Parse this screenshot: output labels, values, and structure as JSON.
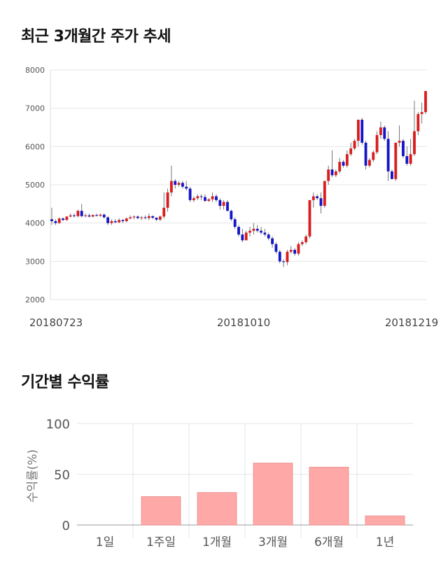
{
  "titles": {
    "price_trend": "최근 3개월간 주가 추세",
    "period_returns": "기간별 수익률"
  },
  "chart_data": [
    {
      "type": "candlestick",
      "ylim": [
        2000,
        8000
      ],
      "yticks": [
        "2000",
        "3000",
        "4000",
        "5000",
        "6000",
        "7000",
        "8000"
      ],
      "x_labels": [
        "20180723",
        "20181010",
        "20181219"
      ],
      "grid": true,
      "colors": {
        "up": "#d81e1e",
        "down": "#1515c8",
        "wick": "#555555",
        "grid": "#e6e6e6"
      },
      "candles": [
        [
          4100,
          4400,
          3950,
          4050
        ],
        [
          4050,
          4100,
          3950,
          4000
        ],
        [
          4000,
          4150,
          3980,
          4120
        ],
        [
          4120,
          4150,
          4050,
          4080
        ],
        [
          4080,
          4180,
          4060,
          4170
        ],
        [
          4170,
          4250,
          4150,
          4200
        ],
        [
          4200,
          4250,
          4150,
          4180
        ],
        [
          4180,
          4350,
          4150,
          4320
        ],
        [
          4320,
          4500,
          4150,
          4180
        ],
        [
          4180,
          4250,
          4150,
          4200
        ],
        [
          4200,
          4250,
          4150,
          4170
        ],
        [
          4170,
          4230,
          4150,
          4210
        ],
        [
          4210,
          4250,
          4170,
          4190
        ],
        [
          4190,
          4250,
          4160,
          4220
        ],
        [
          4220,
          4250,
          4120,
          4150
        ],
        [
          4150,
          4180,
          3950,
          4000
        ],
        [
          4000,
          4100,
          3950,
          4050
        ],
        [
          4050,
          4100,
          4000,
          4020
        ],
        [
          4020,
          4120,
          4000,
          4080
        ],
        [
          4080,
          4100,
          4000,
          4050
        ],
        [
          4050,
          4150,
          4020,
          4120
        ],
        [
          4120,
          4200,
          4100,
          4150
        ],
        [
          4150,
          4200,
          4100,
          4170
        ],
        [
          4170,
          4200,
          4100,
          4130
        ],
        [
          4130,
          4180,
          4080,
          4150
        ],
        [
          4150,
          4200,
          4100,
          4130
        ],
        [
          4130,
          4250,
          4080,
          4180
        ],
        [
          4180,
          4200,
          4100,
          4140
        ],
        [
          4140,
          4150,
          4050,
          4090
        ],
        [
          4090,
          4200,
          4050,
          4170
        ],
        [
          4170,
          4800,
          4120,
          4400
        ],
        [
          4400,
          4900,
          4300,
          4800
        ],
        [
          4800,
          5500,
          4700,
          5100
        ],
        [
          5100,
          5150,
          4900,
          5000
        ],
        [
          5000,
          5100,
          4950,
          5050
        ],
        [
          5050,
          5100,
          4900,
          4950
        ],
        [
          4950,
          5100,
          4850,
          4900
        ],
        [
          4900,
          4950,
          4550,
          4600
        ],
        [
          4600,
          4700,
          4550,
          4650
        ],
        [
          4650,
          4750,
          4600,
          4700
        ],
        [
          4700,
          4750,
          4600,
          4680
        ],
        [
          4680,
          4750,
          4550,
          4580
        ],
        [
          4580,
          4650,
          4550,
          4620
        ],
        [
          4620,
          4800,
          4550,
          4700
        ],
        [
          4700,
          4750,
          4550,
          4600
        ],
        [
          4600,
          4650,
          4350,
          4450
        ],
        [
          4450,
          4600,
          4350,
          4550
        ],
        [
          4550,
          4600,
          4300,
          4320
        ],
        [
          4320,
          4350,
          4050,
          4100
        ],
        [
          4100,
          4150,
          3850,
          3900
        ],
        [
          3900,
          3950,
          3650,
          3700
        ],
        [
          3700,
          3850,
          3500,
          3550
        ],
        [
          3550,
          3800,
          3550,
          3750
        ],
        [
          3750,
          3900,
          3650,
          3800
        ],
        [
          3800,
          4000,
          3700,
          3850
        ],
        [
          3850,
          3950,
          3750,
          3800
        ],
        [
          3800,
          3900,
          3700,
          3750
        ],
        [
          3750,
          3850,
          3650,
          3700
        ],
        [
          3700,
          3750,
          3550,
          3600
        ],
        [
          3600,
          3650,
          3350,
          3450
        ],
        [
          3450,
          3500,
          3200,
          3250
        ],
        [
          3250,
          3300,
          2950,
          3000
        ],
        [
          3000,
          3050,
          2850,
          2980
        ],
        [
          2980,
          3300,
          2900,
          3250
        ],
        [
          3250,
          3400,
          3200,
          3300
        ],
        [
          3300,
          3350,
          3150,
          3200
        ],
        [
          3200,
          3500,
          3150,
          3450
        ],
        [
          3450,
          3550,
          3400,
          3500
        ],
        [
          3500,
          3700,
          3450,
          3650
        ],
        [
          3650,
          4600,
          3600,
          4600
        ],
        [
          4600,
          4800,
          4400,
          4700
        ],
        [
          4700,
          4750,
          4600,
          4650
        ],
        [
          4650,
          4800,
          4250,
          4450
        ],
        [
          4450,
          5100,
          4400,
          5100
        ],
        [
          5100,
          5500,
          5000,
          5400
        ],
        [
          5400,
          5900,
          5200,
          5250
        ],
        [
          5250,
          5400,
          5200,
          5350
        ],
        [
          5350,
          5700,
          5300,
          5600
        ],
        [
          5600,
          5650,
          5450,
          5500
        ],
        [
          5500,
          5900,
          5450,
          5800
        ],
        [
          5800,
          6100,
          5750,
          5950
        ],
        [
          5950,
          6200,
          5900,
          6150
        ],
        [
          6150,
          6700,
          6000,
          6700
        ],
        [
          6700,
          6750,
          6050,
          6100
        ],
        [
          6100,
          6150,
          5400,
          5500
        ],
        [
          5500,
          5700,
          5450,
          5650
        ],
        [
          5650,
          5900,
          5600,
          5850
        ],
        [
          5850,
          6400,
          5800,
          6300
        ],
        [
          6300,
          6650,
          6200,
          6500
        ],
        [
          6500,
          6550,
          6150,
          6200
        ],
        [
          6200,
          6400,
          5100,
          5350
        ],
        [
          5350,
          5400,
          5150,
          5150
        ],
        [
          5150,
          6100,
          5100,
          6100
        ],
        [
          6100,
          6550,
          6000,
          6150
        ],
        [
          6150,
          6200,
          5700,
          5750
        ],
        [
          5750,
          6000,
          5500,
          5550
        ],
        [
          5550,
          6200,
          5500,
          5800
        ],
        [
          5800,
          7200,
          5750,
          6400
        ],
        [
          6400,
          6900,
          6300,
          6850
        ],
        [
          6850,
          7150,
          6600,
          6900
        ],
        [
          6900,
          7450,
          6850,
          7450
        ]
      ]
    },
    {
      "type": "bar",
      "categories": [
        "1일",
        "1주일",
        "1개월",
        "3개월",
        "6개월",
        "1년"
      ],
      "values": [
        0,
        28,
        32,
        61,
        57,
        9
      ],
      "ylabel": "수익률(%)",
      "ylim": [
        0,
        100
      ],
      "yticks": [
        "0",
        "50",
        "100"
      ],
      "grid": true,
      "colors": {
        "bar": "#ffa8a8",
        "bar_edge": "#e88a8a",
        "grid": "#e6e6ee"
      }
    }
  ]
}
